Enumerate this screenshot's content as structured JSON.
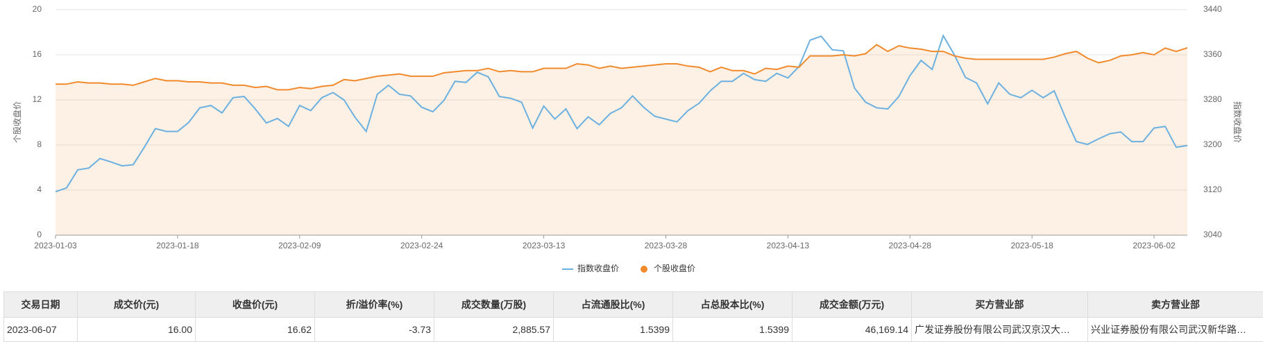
{
  "chart_data": {
    "type": "line",
    "categories": [
      "2023-01-03",
      null,
      null,
      null,
      null,
      null,
      null,
      null,
      null,
      null,
      null,
      "2023-01-18",
      null,
      null,
      null,
      null,
      null,
      null,
      null,
      null,
      null,
      null,
      "2023-02-09",
      null,
      null,
      null,
      null,
      null,
      null,
      null,
      null,
      null,
      null,
      "2023-02-24",
      null,
      null,
      null,
      null,
      null,
      null,
      null,
      null,
      null,
      null,
      "2023-03-13",
      null,
      null,
      null,
      null,
      null,
      null,
      null,
      null,
      null,
      null,
      "2023-03-28",
      null,
      null,
      null,
      null,
      null,
      null,
      null,
      null,
      null,
      null,
      "2023-04-13",
      null,
      null,
      null,
      null,
      null,
      null,
      null,
      null,
      null,
      null,
      "2023-04-28",
      null,
      null,
      null,
      null,
      null,
      null,
      null,
      null,
      null,
      null,
      "2023-05-18",
      null,
      null,
      null,
      null,
      null,
      null,
      null,
      null,
      null,
      null,
      "2023-06-02",
      null,
      null,
      null
    ],
    "series": [
      {
        "name": "指数收盘价",
        "color": "#6cb0e0",
        "axis": "y2",
        "values": [
          3117,
          3124,
          3156,
          3159,
          3176,
          3170,
          3163,
          3165,
          3196,
          3229,
          3224,
          3224,
          3240,
          3266,
          3270,
          3257,
          3284,
          3286,
          3264,
          3239,
          3247,
          3233,
          3270,
          3261,
          3284,
          3293,
          3280,
          3249,
          3224,
          3290,
          3306,
          3290,
          3287,
          3267,
          3259,
          3279,
          3313,
          3311,
          3329,
          3321,
          3286,
          3283,
          3276,
          3230,
          3269,
          3246,
          3264,
          3229,
          3250,
          3236,
          3256,
          3266,
          3287,
          3267,
          3251,
          3246,
          3241,
          3261,
          3274,
          3296,
          3313,
          3313,
          3327,
          3316,
          3313,
          3327,
          3319,
          3339,
          3386,
          3393,
          3369,
          3367,
          3301,
          3276,
          3266,
          3264,
          3286,
          3323,
          3350,
          3334,
          3394,
          3360,
          3320,
          3310,
          3273,
          3310,
          3290,
          3284,
          3297,
          3284,
          3296,
          3249,
          3206,
          3201,
          3211,
          3220,
          3223,
          3206,
          3206,
          3230,
          3233,
          3196,
          3199
        ]
      },
      {
        "name": "个股收盘价",
        "color": "#f08a2c",
        "values": [
          13.4,
          13.4,
          13.6,
          13.5,
          13.5,
          13.4,
          13.4,
          13.3,
          13.6,
          13.9,
          13.7,
          13.7,
          13.6,
          13.6,
          13.5,
          13.5,
          13.3,
          13.3,
          13.1,
          13.2,
          12.9,
          12.9,
          13.1,
          13.0,
          13.2,
          13.3,
          13.8,
          13.7,
          13.9,
          14.1,
          14.2,
          14.3,
          14.1,
          14.1,
          14.1,
          14.4,
          14.5,
          14.6,
          14.6,
          14.8,
          14.5,
          14.6,
          14.5,
          14.5,
          14.8,
          14.8,
          14.8,
          15.2,
          15.1,
          14.8,
          15.0,
          14.8,
          14.9,
          15.0,
          15.1,
          15.2,
          15.2,
          15.0,
          14.9,
          14.5,
          14.9,
          14.6,
          14.6,
          14.3,
          14.8,
          14.7,
          15.0,
          14.9,
          15.9,
          15.9,
          15.9,
          16.0,
          15.9,
          16.1,
          16.9,
          16.3,
          16.8,
          16.6,
          16.5,
          16.3,
          16.3,
          15.9,
          15.7,
          15.6,
          15.6,
          15.6,
          15.6,
          15.6,
          15.6,
          15.6,
          15.8,
          16.1,
          16.3,
          15.7,
          15.3,
          15.5,
          15.9,
          16.0,
          16.2,
          16.0,
          16.6,
          16.3,
          16.62
        ]
      }
    ],
    "y_label": "个股收盘价",
    "y2_label": "指数收盘价",
    "ylim": [
      0,
      20
    ],
    "yticks": [
      0,
      4,
      8,
      12,
      16,
      20
    ],
    "y2lim": [
      3040,
      3440
    ],
    "y2ticks": [
      3040,
      3120,
      3200,
      3280,
      3360,
      3440
    ],
    "grid": true,
    "area": true,
    "legend": "bottom"
  },
  "table": {
    "headers": [
      "交易日期",
      "成交价(元)",
      "收盘价(元)",
      "折/溢价率(%)",
      "成交数量(万股)",
      "占流通股比(%)",
      "占总股本比(%)",
      "成交金额(万元)",
      "买方营业部",
      "卖方营业部"
    ],
    "rows": [
      [
        "2023-06-07",
        "16.00",
        "16.62",
        "-3.73",
        "2,885.57",
        "1.5399",
        "1.5399",
        "46,169.14",
        "广发证券股份有限公司武汉京汉大…",
        "兴业证券股份有限公司武汉新华路…"
      ]
    ]
  }
}
